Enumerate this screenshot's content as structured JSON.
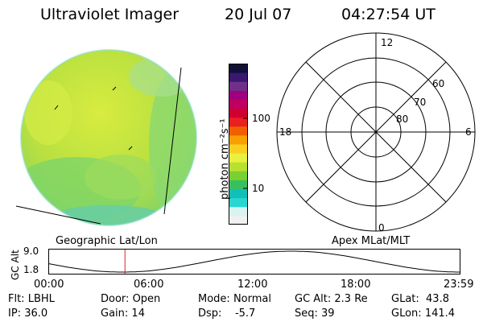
{
  "header": {
    "instrument": "Ultraviolet Imager",
    "date": "20 Jul 07",
    "time": "04:27:54 UT"
  },
  "colorbar": {
    "unit_label": "photon cm⁻²s⁻¹",
    "tick_labels": [
      "100",
      "10"
    ],
    "colors": [
      "#f0f0f0",
      "#d8f4f0",
      "#28d8d0",
      "#10c0b8",
      "#38c060",
      "#7ad030",
      "#b8e030",
      "#e8f040",
      "#f8d020",
      "#f8a000",
      "#f06000",
      "#e82020",
      "#d00030",
      "#c00060",
      "#a00080",
      "#70308a",
      "#3a1870",
      "#101038"
    ]
  },
  "image_panel": {
    "label": "Geographic Lat/Lon"
  },
  "polar_plot": {
    "label": "Apex MLat/MLT",
    "mlt_labels": [
      "12",
      "18",
      "6",
      "0"
    ],
    "mlat_labels": [
      "60",
      "70",
      "80"
    ]
  },
  "altitude_plot": {
    "ylabel": "GC Alt",
    "y_ticks": [
      "9.0",
      "1.8"
    ],
    "x_ticks": [
      "00:00",
      "06:00",
      "12:00",
      "18:00",
      "23:59"
    ],
    "current_time_fraction": 0.186
  },
  "status": {
    "row1": [
      {
        "key": "Flt:",
        "value": "LBHL"
      },
      {
        "key": "Door:",
        "value": "Open"
      },
      {
        "key": "Mode:",
        "value": "Normal"
      },
      {
        "key": "GC Alt:",
        "value": "2.3 Re"
      },
      {
        "key": "GLat:",
        "value": "43.8"
      }
    ],
    "row2": [
      {
        "key": "IP:",
        "value": "36.0"
      },
      {
        "key": "Gain:",
        "value": "14"
      },
      {
        "key": "Dsp:",
        "value": "-5.7"
      },
      {
        "key": "Seq:",
        "value": "39"
      },
      {
        "key": "GLon:",
        "value": "141.4"
      }
    ]
  }
}
